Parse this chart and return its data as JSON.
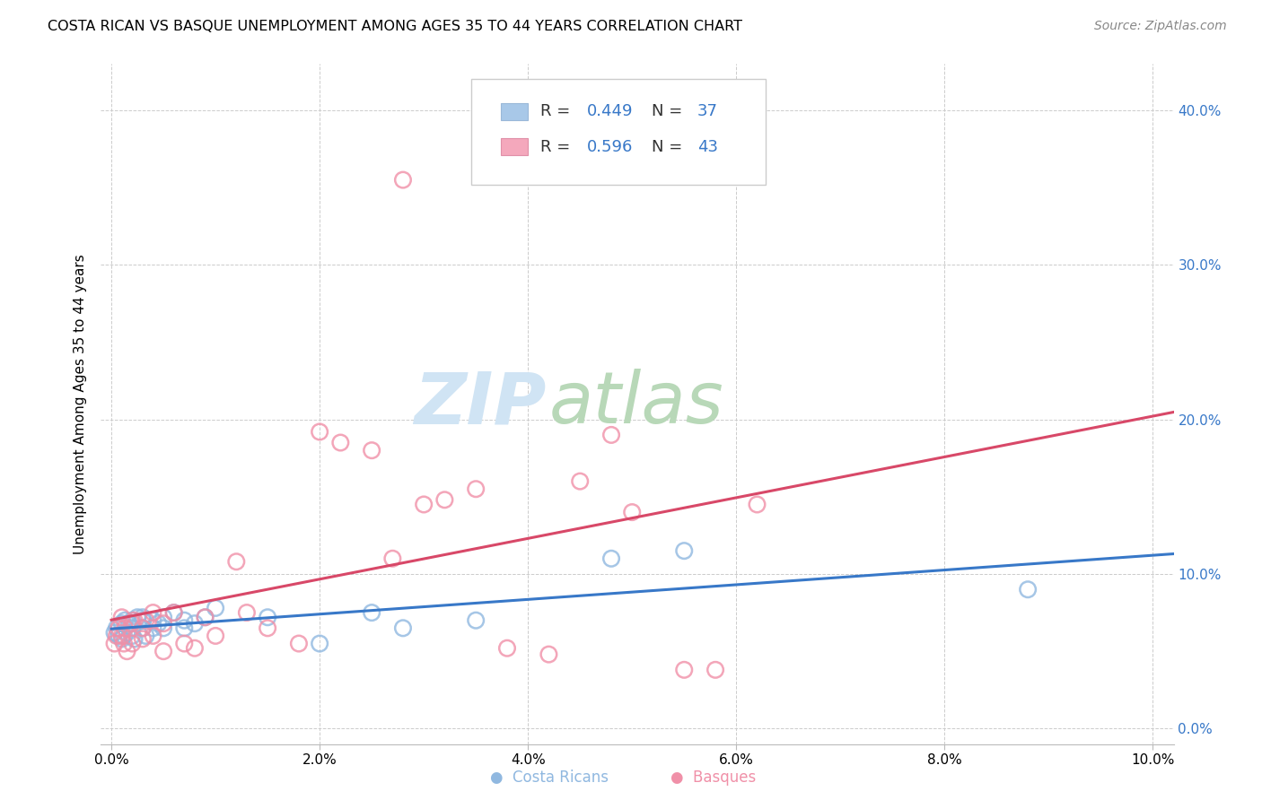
{
  "title": "COSTA RICAN VS BASQUE UNEMPLOYMENT AMONG AGES 35 TO 44 YEARS CORRELATION CHART",
  "source": "Source: ZipAtlas.com",
  "ylabel": "Unemployment Among Ages 35 to 44 years",
  "x_tick_labels": [
    "0.0%",
    "2.0%",
    "4.0%",
    "6.0%",
    "8.0%",
    "10.0%"
  ],
  "x_tick_vals": [
    0.0,
    0.02,
    0.04,
    0.06,
    0.08,
    0.1
  ],
  "y_tick_vals": [
    0.0,
    0.1,
    0.2,
    0.3,
    0.4
  ],
  "y_tick_labels_right": [
    "0.0%",
    "10.0%",
    "20.0%",
    "30.0%",
    "40.0%"
  ],
  "xlim": [
    -0.001,
    0.102
  ],
  "ylim": [
    -0.01,
    0.43
  ],
  "legend_color1": "#a8c8e8",
  "legend_color2": "#f4a8bc",
  "color_blue": "#90b8e0",
  "color_pink": "#f090a8",
  "line_color_blue": "#3878c8",
  "line_color_pink": "#d84868",
  "line_color_dashed": "#d8a0b0",
  "watermark_zip": "ZIP",
  "watermark_atlas": "atlas",
  "watermark_color_zip": "#d0e4f4",
  "watermark_color_atlas": "#b8d8b8",
  "costa_ricans_x": [
    0.0003,
    0.0005,
    0.0007,
    0.001,
    0.001,
    0.0012,
    0.0013,
    0.0015,
    0.0017,
    0.002,
    0.002,
    0.002,
    0.0022,
    0.0025,
    0.003,
    0.003,
    0.003,
    0.0033,
    0.004,
    0.004,
    0.0045,
    0.005,
    0.005,
    0.006,
    0.007,
    0.007,
    0.008,
    0.009,
    0.01,
    0.015,
    0.02,
    0.025,
    0.028,
    0.035,
    0.048,
    0.055,
    0.088
  ],
  "costa_ricans_y": [
    0.062,
    0.065,
    0.06,
    0.068,
    0.058,
    0.06,
    0.07,
    0.062,
    0.068,
    0.065,
    0.06,
    0.07,
    0.058,
    0.072,
    0.07,
    0.065,
    0.072,
    0.06,
    0.07,
    0.065,
    0.068,
    0.065,
    0.072,
    0.075,
    0.065,
    0.07,
    0.068,
    0.072,
    0.078,
    0.072,
    0.055,
    0.075,
    0.065,
    0.07,
    0.11,
    0.115,
    0.09
  ],
  "basques_x": [
    0.0003,
    0.0005,
    0.0007,
    0.001,
    0.001,
    0.0012,
    0.0013,
    0.0015,
    0.002,
    0.002,
    0.0022,
    0.003,
    0.003,
    0.0033,
    0.004,
    0.004,
    0.005,
    0.005,
    0.006,
    0.007,
    0.008,
    0.009,
    0.01,
    0.012,
    0.013,
    0.015,
    0.018,
    0.02,
    0.022,
    0.025,
    0.027,
    0.03,
    0.032,
    0.035,
    0.038,
    0.042,
    0.045,
    0.048,
    0.05,
    0.055,
    0.058,
    0.062,
    0.028
  ],
  "basques_y": [
    0.055,
    0.06,
    0.065,
    0.06,
    0.072,
    0.055,
    0.065,
    0.05,
    0.068,
    0.055,
    0.07,
    0.058,
    0.065,
    0.07,
    0.06,
    0.075,
    0.05,
    0.068,
    0.075,
    0.055,
    0.052,
    0.072,
    0.06,
    0.108,
    0.075,
    0.065,
    0.055,
    0.192,
    0.185,
    0.18,
    0.11,
    0.145,
    0.148,
    0.155,
    0.052,
    0.048,
    0.16,
    0.19,
    0.14,
    0.038,
    0.038,
    0.145,
    0.355
  ],
  "dot_size": 160,
  "dot_alpha": 0.5,
  "legend_r1_text": "R = 0.449",
  "legend_n1_text": "N = 37",
  "legend_r2_text": "R = 0.596",
  "legend_n2_text": "N = 43"
}
